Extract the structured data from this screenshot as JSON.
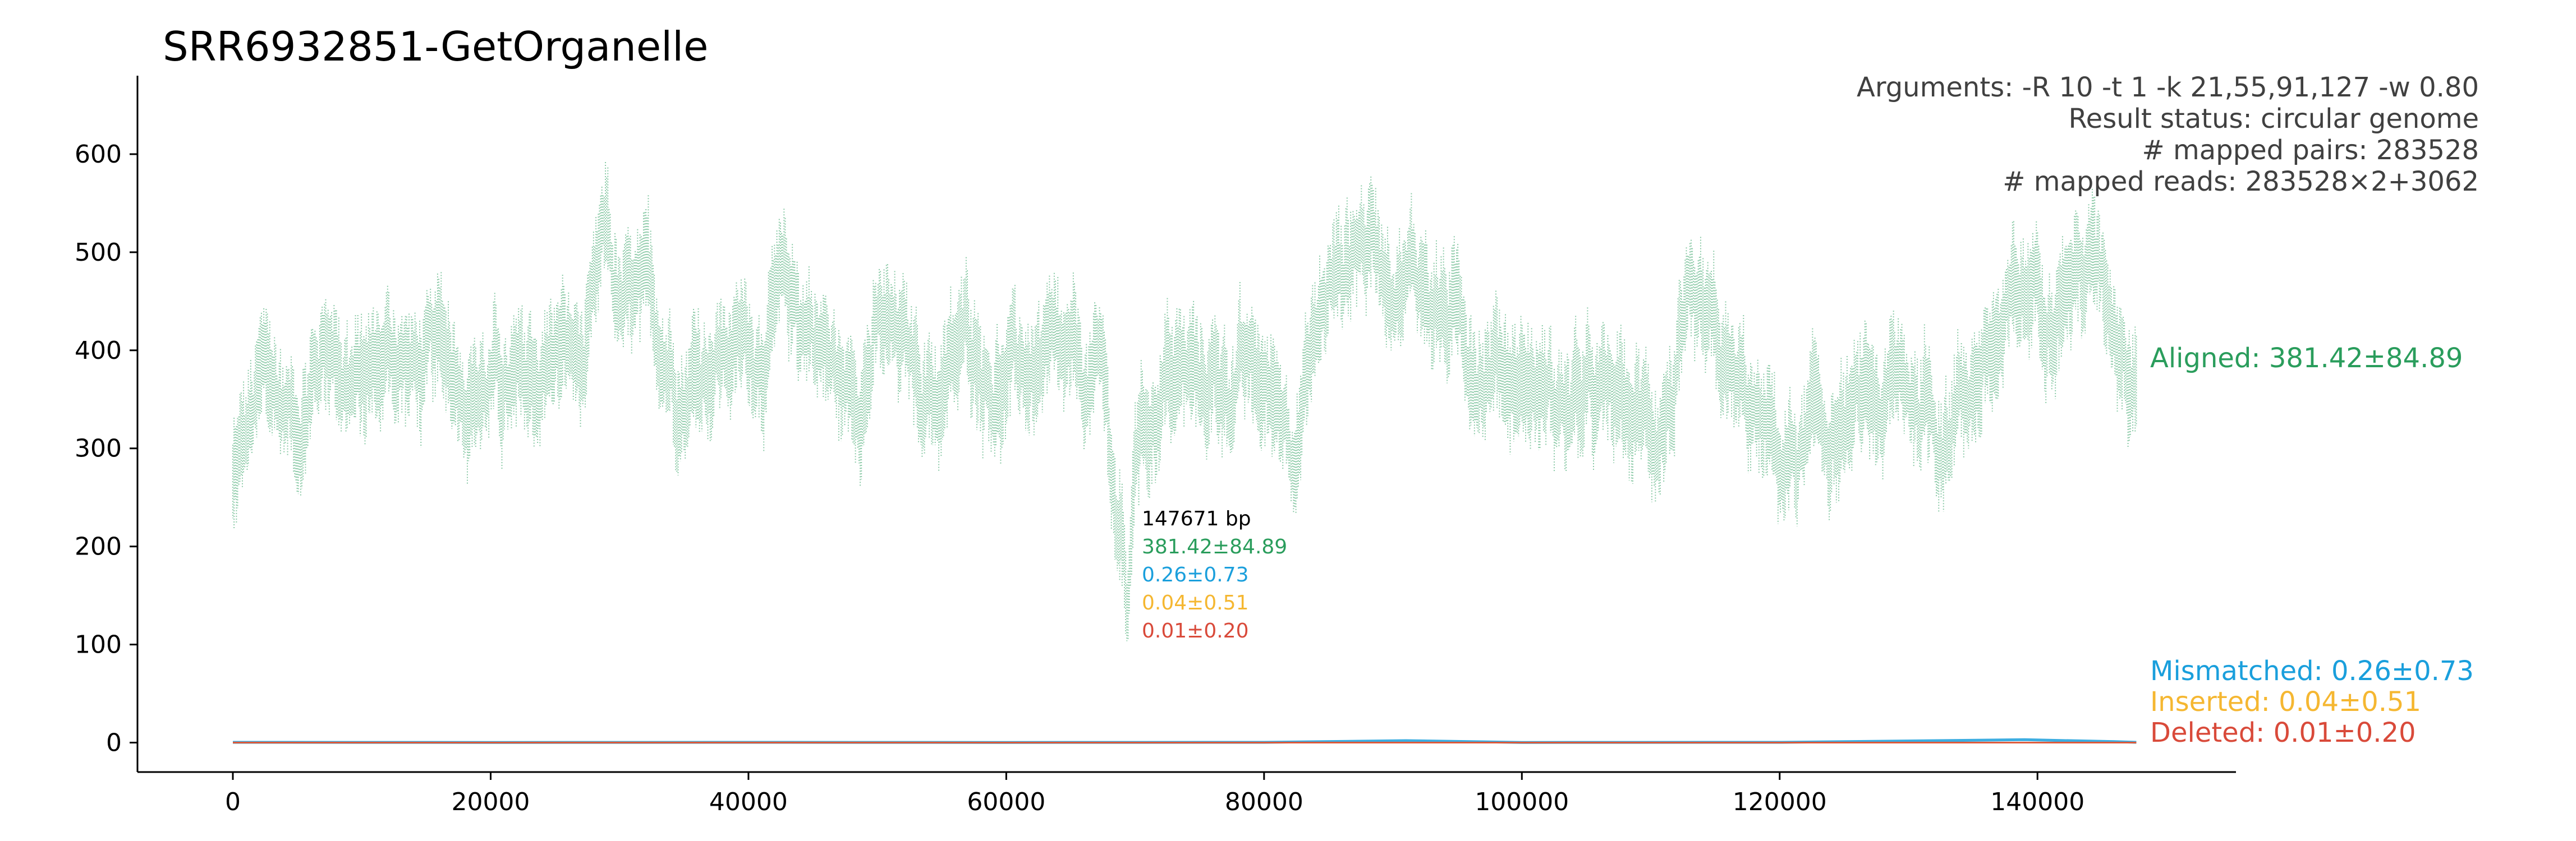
{
  "chart_data": {
    "type": "scatter",
    "title": "SRR6932851-GetOrganelle",
    "xlim": [
      -7400,
      155400
    ],
    "ylim": [
      -30,
      680
    ],
    "x_ticks": [
      0,
      20000,
      40000,
      60000,
      80000,
      100000,
      120000,
      140000
    ],
    "x_tick_labels": [
      "0",
      "20000",
      "40000",
      "60000",
      "80000",
      "100000",
      "120000",
      "140000"
    ],
    "y_ticks": [
      0,
      100,
      200,
      300,
      400,
      500,
      600
    ],
    "y_tick_labels": [
      "0",
      "100",
      "200",
      "300",
      "400",
      "500",
      "600"
    ],
    "genome_length": 147671,
    "info_lines": [
      "Arguments: -R 10 -t 1 -k 21,55,91,127 -w 0.80",
      "Result status: circular genome",
      "# mapped pairs: 283528",
      "# mapped reads: 283528×2+3062"
    ],
    "center_labels": {
      "length": "147671 bp",
      "aligned": "381.42±84.89",
      "mismatched": "0.26±0.73",
      "inserted": "0.04±0.51",
      "deleted": "0.01±0.20"
    },
    "series": [
      {
        "name": "Aligned: 381.42±84.89",
        "color": "#2a9d5c",
        "points": [
          [
            0,
            260
          ],
          [
            2500,
            360
          ],
          [
            5000,
            330
          ],
          [
            7500,
            420
          ],
          [
            10000,
            360
          ],
          [
            12500,
            400
          ],
          [
            15000,
            370
          ],
          [
            17500,
            390
          ],
          [
            20000,
            370
          ],
          [
            22500,
            340
          ],
          [
            25000,
            400
          ],
          [
            27500,
            380
          ],
          [
            29000,
            500
          ],
          [
            30000,
            430
          ],
          [
            32500,
            420
          ],
          [
            35000,
            380
          ],
          [
            37500,
            410
          ],
          [
            40000,
            400
          ],
          [
            42500,
            440
          ],
          [
            45000,
            430
          ],
          [
            47500,
            350
          ],
          [
            50000,
            420
          ],
          [
            52500,
            380
          ],
          [
            55000,
            360
          ],
          [
            57500,
            410
          ],
          [
            60000,
            370
          ],
          [
            62500,
            380
          ],
          [
            65000,
            350
          ],
          [
            67500,
            360
          ],
          [
            69500,
            120
          ],
          [
            70000,
            310
          ],
          [
            72500,
            380
          ],
          [
            75000,
            360
          ],
          [
            77500,
            380
          ],
          [
            80000,
            350
          ],
          [
            82500,
            340
          ],
          [
            85000,
            460
          ],
          [
            87500,
            520
          ],
          [
            90000,
            500
          ],
          [
            92500,
            470
          ],
          [
            95000,
            420
          ],
          [
            97500,
            400
          ],
          [
            100000,
            380
          ],
          [
            102500,
            350
          ],
          [
            105000,
            340
          ],
          [
            107500,
            330
          ],
          [
            110000,
            320
          ],
          [
            112500,
            390
          ],
          [
            115000,
            370
          ],
          [
            117500,
            330
          ],
          [
            120000,
            280
          ],
          [
            122500,
            300
          ],
          [
            125000,
            320
          ],
          [
            127500,
            330
          ],
          [
            130000,
            360
          ],
          [
            132500,
            330
          ],
          [
            135000,
            380
          ],
          [
            137500,
            410
          ],
          [
            140000,
            470
          ],
          [
            142500,
            490
          ],
          [
            145000,
            480
          ],
          [
            147000,
            420
          ]
        ]
      },
      {
        "name": "Mismatched: 0.26±0.73",
        "color": "#1a9fdc",
        "points": [
          [
            0,
            0.3
          ],
          [
            20000,
            0.2
          ],
          [
            40000,
            0.3
          ],
          [
            60000,
            0.2
          ],
          [
            80000,
            0.3
          ],
          [
            91000,
            2
          ],
          [
            100000,
            0.2
          ],
          [
            120000,
            0.3
          ],
          [
            139000,
            3
          ],
          [
            146000,
            1
          ],
          [
            147671,
            0.3
          ]
        ]
      },
      {
        "name": "Inserted: 0.04±0.51",
        "color": "#f5b731",
        "points": [
          [
            0,
            0.04
          ],
          [
            40000,
            0.05
          ],
          [
            80000,
            0.04
          ],
          [
            120000,
            0.03
          ],
          [
            147671,
            0.04
          ]
        ]
      },
      {
        "name": "Deleted: 0.01±0.20",
        "color": "#d94a3a",
        "points": [
          [
            0,
            0.01
          ],
          [
            40000,
            0.02
          ],
          [
            80000,
            0.01
          ],
          [
            120000,
            0.01
          ],
          [
            147671,
            0.01
          ]
        ]
      }
    ]
  }
}
